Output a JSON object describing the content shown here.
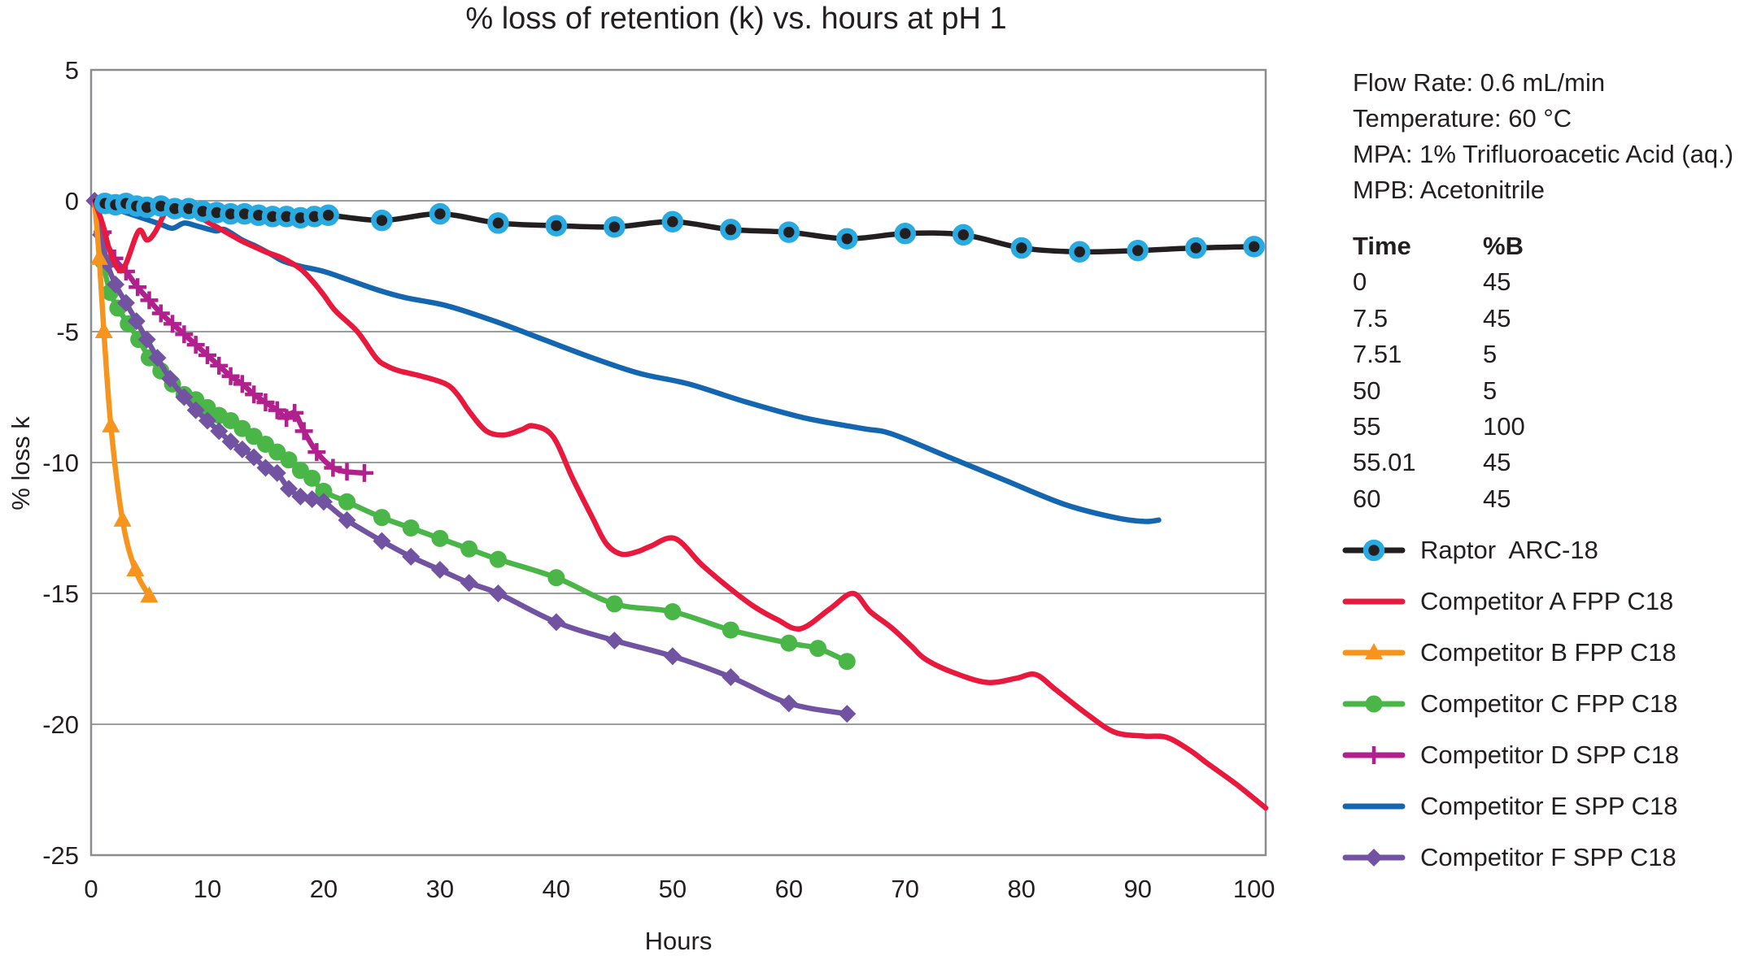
{
  "title": "% loss of retention (k) vs. hours at pH 1",
  "conditions": [
    "Flow Rate: 0.6 mL/min",
    "Temperature: 60 °C",
    "MPA: 1% Trifluoroacetic Acid (aq.)",
    "MPB: Acetonitrile"
  ],
  "gradient_table": {
    "headers": [
      "Time",
      "%B"
    ],
    "rows": [
      [
        "0",
        "45"
      ],
      [
        "7.5",
        "45"
      ],
      [
        "7.51",
        "5"
      ],
      [
        "50",
        "5"
      ],
      [
        "55",
        "100"
      ],
      [
        "55.01",
        "45"
      ],
      [
        "60",
        "45"
      ]
    ]
  },
  "chart_data": {
    "type": "line",
    "title": "% loss of retention (k) vs. hours at pH 1",
    "xlabel": "Hours",
    "ylabel": "% loss k",
    "xlim": [
      0,
      101
    ],
    "ylim": [
      -25,
      5
    ],
    "x_ticks": [
      0,
      10,
      20,
      30,
      40,
      50,
      60,
      70,
      80,
      90,
      100
    ],
    "y_ticks": [
      5,
      0,
      -5,
      -10,
      -15,
      -20,
      -25
    ],
    "grid": true,
    "legend_position": "right",
    "colors": {
      "grid": "#9b9da0",
      "border": "#8a8c8f",
      "text": "#231f20",
      "raptor_black": "#231f20",
      "raptor_ring_cyan": "#29abe2",
      "competitor_a_red": "#e8193d",
      "competitor_b_orange": "#f7941e",
      "competitor_c_green": "#4ab648",
      "competitor_d_magenta": "#b2208e",
      "competitor_e_blue": "#1566b0",
      "competitor_f_purple": "#7153a1"
    },
    "series": [
      {
        "name": "Raptor  ARC-18",
        "color": "#231f20",
        "marker": "circle-ring",
        "marker_ring": "#29abe2",
        "m0": false,
        "points": [
          [
            0.4,
            0
          ],
          [
            1.2,
            -0.1
          ],
          [
            2.1,
            -0.15
          ],
          [
            3,
            -0.1
          ],
          [
            3.9,
            -0.2
          ],
          [
            4.8,
            -0.25
          ],
          [
            6,
            -0.2
          ],
          [
            7.2,
            -0.3
          ],
          [
            8.4,
            -0.3
          ],
          [
            9.6,
            -0.4
          ],
          [
            10.8,
            -0.45
          ],
          [
            12,
            -0.5
          ],
          [
            13.2,
            -0.5
          ],
          [
            14.4,
            -0.55
          ],
          [
            15.6,
            -0.6
          ],
          [
            16.8,
            -0.6
          ],
          [
            18,
            -0.65
          ],
          [
            19.2,
            -0.6
          ],
          [
            20.4,
            -0.55
          ],
          [
            25,
            -0.75
          ],
          [
            30,
            -0.5
          ],
          [
            35,
            -0.85
          ],
          [
            40,
            -0.95
          ],
          [
            45,
            -1.0
          ],
          [
            50,
            -0.8
          ],
          [
            55,
            -1.1
          ],
          [
            60,
            -1.2
          ],
          [
            65,
            -1.45
          ],
          [
            70,
            -1.25
          ],
          [
            75,
            -1.3
          ],
          [
            80,
            -1.8
          ],
          [
            85,
            -1.95
          ],
          [
            90,
            -1.9
          ],
          [
            95,
            -1.8
          ],
          [
            100,
            -1.75
          ]
        ]
      },
      {
        "name": "Competitor A FPP C18",
        "color": "#e8193d",
        "marker": "none",
        "m0": false,
        "points": [
          [
            0.3,
            0
          ],
          [
            1,
            -0.9
          ],
          [
            1.6,
            -1.9
          ],
          [
            2.4,
            -2.65
          ],
          [
            3,
            -2.4
          ],
          [
            4.1,
            -1.15
          ],
          [
            4.8,
            -1.5
          ],
          [
            5.5,
            -1.2
          ],
          [
            6.3,
            -0.5
          ],
          [
            7,
            -0.1
          ],
          [
            7.6,
            -0.4
          ],
          [
            8.2,
            -0.15
          ],
          [
            9,
            -0.5
          ],
          [
            10,
            -0.8
          ],
          [
            11,
            -1.05
          ],
          [
            12,
            -1.3
          ],
          [
            13,
            -1.55
          ],
          [
            14,
            -1.75
          ],
          [
            15,
            -1.95
          ],
          [
            16.5,
            -2.2
          ],
          [
            18,
            -2.6
          ],
          [
            19.1,
            -3.1
          ],
          [
            20,
            -3.6
          ],
          [
            21,
            -4.2
          ],
          [
            22.9,
            -5.0
          ],
          [
            24.5,
            -6.0
          ],
          [
            25.4,
            -6.3
          ],
          [
            26.5,
            -6.5
          ],
          [
            28.4,
            -6.7
          ],
          [
            30.5,
            -7.0
          ],
          [
            31.5,
            -7.4
          ],
          [
            32.6,
            -8.1
          ],
          [
            34,
            -8.8
          ],
          [
            35.5,
            -8.95
          ],
          [
            37,
            -8.75
          ],
          [
            38,
            -8.6
          ],
          [
            39.7,
            -9.0
          ],
          [
            41.4,
            -10.6
          ],
          [
            43.1,
            -12.1
          ],
          [
            44.3,
            -13.1
          ],
          [
            45.6,
            -13.5
          ],
          [
            47,
            -13.4
          ],
          [
            48.1,
            -13.2
          ],
          [
            50.2,
            -12.9
          ],
          [
            52.5,
            -13.9
          ],
          [
            54.9,
            -14.8
          ],
          [
            57,
            -15.5
          ],
          [
            59,
            -16.0
          ],
          [
            61,
            -16.35
          ],
          [
            63.5,
            -15.6
          ],
          [
            65.5,
            -15.0
          ],
          [
            67,
            -15.7
          ],
          [
            68.8,
            -16.3
          ],
          [
            70.5,
            -17.0
          ],
          [
            71.7,
            -17.5
          ],
          [
            74,
            -18.0
          ],
          [
            77,
            -18.4
          ],
          [
            79.5,
            -18.25
          ],
          [
            81.2,
            -18.1
          ],
          [
            83,
            -18.7
          ],
          [
            85.6,
            -19.6
          ],
          [
            88,
            -20.3
          ],
          [
            90.5,
            -20.45
          ],
          [
            92.5,
            -20.5
          ],
          [
            94.5,
            -21.0
          ],
          [
            96,
            -21.5
          ],
          [
            98.5,
            -22.3
          ],
          [
            101,
            -23.2
          ]
        ]
      },
      {
        "name": "Competitor B FPP C18",
        "color": "#f7941e",
        "marker": "triangle",
        "m0": false,
        "points": [
          [
            0.3,
            0
          ],
          [
            0.7,
            -2.2
          ],
          [
            1.1,
            -5.0
          ],
          [
            1.7,
            -8.6
          ],
          [
            2.7,
            -12.2
          ],
          [
            3.8,
            -14.1
          ],
          [
            5,
            -15.1
          ]
        ]
      },
      {
        "name": "Competitor C FPP C18",
        "color": "#4ab648",
        "marker": "circle",
        "m0": false,
        "points": [
          [
            0.3,
            0
          ],
          [
            1,
            -2.3
          ],
          [
            1.65,
            -3.5
          ],
          [
            2.3,
            -4.1
          ],
          [
            3.2,
            -4.7
          ],
          [
            4.1,
            -5.3
          ],
          [
            5,
            -6.0
          ],
          [
            6,
            -6.5
          ],
          [
            7,
            -7.0
          ],
          [
            8,
            -7.4
          ],
          [
            9,
            -7.6
          ],
          [
            10,
            -7.9
          ],
          [
            11,
            -8.2
          ],
          [
            12,
            -8.4
          ],
          [
            13,
            -8.7
          ],
          [
            14,
            -9.0
          ],
          [
            15,
            -9.3
          ],
          [
            16,
            -9.6
          ],
          [
            17,
            -9.9
          ],
          [
            18,
            -10.3
          ],
          [
            19,
            -10.6
          ],
          [
            20,
            -11.1
          ],
          [
            22,
            -11.5
          ],
          [
            25,
            -12.1
          ],
          [
            27.5,
            -12.5
          ],
          [
            30,
            -12.9
          ],
          [
            32.5,
            -13.3
          ],
          [
            35,
            -13.7
          ],
          [
            40,
            -14.4
          ],
          [
            45,
            -15.4
          ],
          [
            50,
            -15.7
          ],
          [
            55,
            -16.4
          ],
          [
            60,
            -16.9
          ],
          [
            62.5,
            -17.1
          ],
          [
            65,
            -17.6
          ]
        ]
      },
      {
        "name": "Competitor D SPP C18",
        "color": "#b2208e",
        "marker": "plus",
        "m0": false,
        "points": [
          [
            0.3,
            0
          ],
          [
            1,
            -1.2
          ],
          [
            2,
            -2.2
          ],
          [
            3,
            -2.7
          ],
          [
            4,
            -3.3
          ],
          [
            5,
            -3.8
          ],
          [
            6,
            -4.3
          ],
          [
            7,
            -4.7
          ],
          [
            8,
            -5.1
          ],
          [
            9,
            -5.5
          ],
          [
            10,
            -5.9
          ],
          [
            11,
            -6.3
          ],
          [
            12,
            -6.7
          ],
          [
            13,
            -7.0
          ],
          [
            14,
            -7.4
          ],
          [
            15,
            -7.7
          ],
          [
            16,
            -8.0
          ],
          [
            16.8,
            -8.3
          ],
          [
            17.5,
            -8.1
          ],
          [
            18.3,
            -8.8
          ],
          [
            19.4,
            -9.6
          ],
          [
            20.8,
            -10.2
          ],
          [
            22,
            -10.35
          ],
          [
            23.5,
            -10.4
          ]
        ]
      },
      {
        "name": "Competitor E SPP C18",
        "color": "#1566b0",
        "marker": "none",
        "m0": false,
        "points": [
          [
            0.3,
            0
          ],
          [
            1,
            -0.15
          ],
          [
            2,
            -0.3
          ],
          [
            3,
            -0.45
          ],
          [
            4,
            -0.6
          ],
          [
            5,
            -0.75
          ],
          [
            6,
            -0.9
          ],
          [
            7,
            -1.05
          ],
          [
            8,
            -0.85
          ],
          [
            9,
            -0.95
          ],
          [
            10.7,
            -1.15
          ],
          [
            11.5,
            -1.1
          ],
          [
            13,
            -1.5
          ],
          [
            14,
            -1.7
          ],
          [
            15.3,
            -2.0
          ],
          [
            16.5,
            -2.3
          ],
          [
            18,
            -2.5
          ],
          [
            20,
            -2.7
          ],
          [
            22,
            -3.0
          ],
          [
            24.6,
            -3.4
          ],
          [
            27,
            -3.7
          ],
          [
            30.5,
            -4.0
          ],
          [
            34.7,
            -4.6
          ],
          [
            38.9,
            -5.3
          ],
          [
            43.1,
            -6.0
          ],
          [
            47.2,
            -6.6
          ],
          [
            51.4,
            -7.0
          ],
          [
            56.4,
            -7.7
          ],
          [
            61.4,
            -8.3
          ],
          [
            66.3,
            -8.7
          ],
          [
            68.8,
            -8.9
          ],
          [
            73.8,
            -9.8
          ],
          [
            78.7,
            -10.7
          ],
          [
            83.7,
            -11.6
          ],
          [
            88,
            -12.1
          ],
          [
            90.5,
            -12.25
          ],
          [
            91.8,
            -12.2
          ]
        ]
      },
      {
        "name": "Competitor F SPP C18",
        "color": "#7153a1",
        "marker": "diamond",
        "m0": true,
        "points": [
          [
            0.3,
            0
          ],
          [
            0.85,
            -1.3
          ],
          [
            1.4,
            -2.4
          ],
          [
            2.1,
            -3.2
          ],
          [
            3,
            -3.9
          ],
          [
            3.9,
            -4.6
          ],
          [
            4.8,
            -5.3
          ],
          [
            5.7,
            -6.0
          ],
          [
            6.8,
            -6.8
          ],
          [
            8,
            -7.5
          ],
          [
            9,
            -8.0
          ],
          [
            10,
            -8.4
          ],
          [
            11,
            -8.8
          ],
          [
            12,
            -9.2
          ],
          [
            13,
            -9.5
          ],
          [
            14,
            -9.8
          ],
          [
            15,
            -10.2
          ],
          [
            16,
            -10.4
          ],
          [
            17,
            -11.0
          ],
          [
            18,
            -11.3
          ],
          [
            19,
            -11.4
          ],
          [
            20,
            -11.5
          ],
          [
            22,
            -12.2
          ],
          [
            25,
            -13.0
          ],
          [
            27.5,
            -13.6
          ],
          [
            30,
            -14.1
          ],
          [
            32.5,
            -14.6
          ],
          [
            35,
            -15.0
          ],
          [
            40,
            -16.1
          ],
          [
            45,
            -16.8
          ],
          [
            50,
            -17.4
          ],
          [
            55,
            -18.2
          ],
          [
            60,
            -19.2
          ],
          [
            65,
            -19.6
          ]
        ]
      }
    ]
  }
}
